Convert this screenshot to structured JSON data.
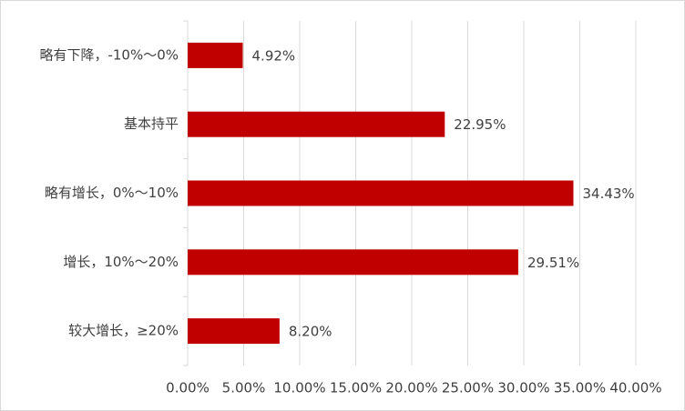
{
  "chart_data": {
    "type": "bar",
    "orientation": "horizontal",
    "categories": [
      "略有下降，-10%～0%",
      "基本持平",
      "略有增长，0%～10%",
      "增长，10%～20%",
      "较大增长，≥20%"
    ],
    "values": [
      4.92,
      22.95,
      34.43,
      29.51,
      8.2
    ],
    "value_labels": [
      "4.92%",
      "22.95%",
      "34.43%",
      "29.51%",
      "8.20%"
    ],
    "color": "#c00000",
    "xlim": [
      0,
      40
    ],
    "xticks": [
      {
        "value": 0,
        "label": "0.00%"
      },
      {
        "value": 5,
        "label": "5.00%"
      },
      {
        "value": 10,
        "label": "10.00%"
      },
      {
        "value": 15,
        "label": "15.00%"
      },
      {
        "value": 20,
        "label": "20.00%"
      },
      {
        "value": 25,
        "label": "25.00%"
      },
      {
        "value": 30,
        "label": "30.00%"
      },
      {
        "value": 35,
        "label": "35.00%"
      },
      {
        "value": 40,
        "label": "40.00%"
      }
    ],
    "grid": true
  }
}
